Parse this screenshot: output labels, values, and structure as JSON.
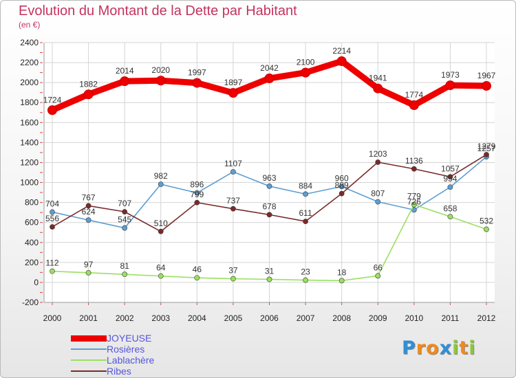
{
  "chart_data": {
    "type": "line",
    "title": "Evolution du Montant de la Dette par Habitant",
    "subtitle": "(en €)",
    "categories": [
      "2000",
      "2001",
      "2002",
      "2003",
      "2004",
      "2005",
      "2006",
      "2007",
      "2008",
      "2009",
      "2010",
      "2011",
      "2012"
    ],
    "ylim": [
      -200,
      2400
    ],
    "yticks": [
      -200,
      0,
      200,
      400,
      600,
      800,
      1000,
      1200,
      1400,
      1600,
      1800,
      2000,
      2200,
      2400
    ],
    "grid": true,
    "legend_position": "bottom-left",
    "series": [
      {
        "name": "JOYEUSE",
        "color": "#ee0000",
        "values": [
          1724,
          1882,
          2014,
          2020,
          1997,
          1897,
          2042,
          2100,
          2214,
          1941,
          1774,
          1973,
          1967
        ]
      },
      {
        "name": "Rosières",
        "color": "#5d9ed3",
        "values": [
          704,
          624,
          545,
          982,
          896,
          1107,
          963,
          884,
          960,
          807,
          726,
          954,
          1257
        ]
      },
      {
        "name": "Lablachère",
        "color": "#99e060",
        "values": [
          112,
          97,
          81,
          64,
          46,
          37,
          31,
          23,
          18,
          66,
          779,
          658,
          532
        ]
      },
      {
        "name": "Ribes",
        "color": "#7a2a2a",
        "values": [
          556,
          767,
          707,
          510,
          799,
          737,
          678,
          611,
          889,
          1203,
          1136,
          1057,
          1279
        ]
      }
    ]
  },
  "logo": {
    "letters": [
      "P",
      "r",
      "o",
      "x",
      "i",
      "t",
      "i"
    ],
    "colors": [
      "#2f8fd8",
      "#f08a1d",
      "#f08a1d",
      "#2f8fd8",
      "#8dc63f",
      "#f08a1d",
      "#8dc63f"
    ]
  }
}
